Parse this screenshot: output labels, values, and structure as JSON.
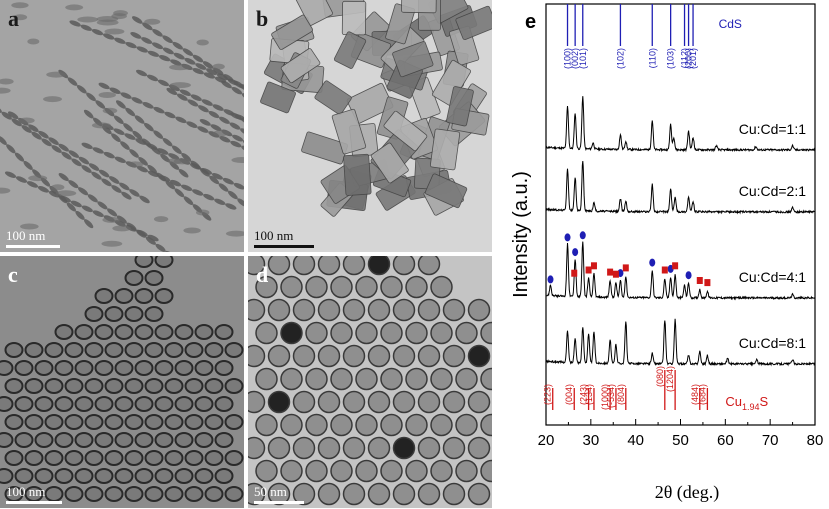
{
  "panels": [
    {
      "id": "a",
      "label": "a",
      "scale": "100 nm",
      "bg": "#9c9c9c"
    },
    {
      "id": "b",
      "label": "b",
      "scale": "100 nm",
      "bg": "#d8d8d8"
    },
    {
      "id": "c",
      "label": "c",
      "scale": "100 nm",
      "bg": "#8e8e8e"
    },
    {
      "id": "d",
      "label": "d",
      "scale": "50 nm",
      "bg": "#b0b0b0"
    }
  ],
  "chart_data": {
    "panel_label": "e",
    "type": "line",
    "xlabel": "2θ (deg.)",
    "ylabel": "Intensity (a.u.)",
    "xlim": [
      20,
      80
    ],
    "xticks": [
      20,
      30,
      40,
      50,
      60,
      70,
      80
    ],
    "colors": {
      "cds": "#1f1fb4",
      "cu": "#d01818",
      "trace": "#000000"
    },
    "cds_reference": {
      "name": "CdS",
      "peaks": [
        {
          "x": 24.8,
          "label": "(100)"
        },
        {
          "x": 26.5,
          "label": "(002)"
        },
        {
          "x": 28.2,
          "label": "(101)"
        },
        {
          "x": 36.6,
          "label": "(102)"
        },
        {
          "x": 43.7,
          "label": "(110)"
        },
        {
          "x": 47.8,
          "label": "(103)"
        },
        {
          "x": 50.9,
          "label": "(112)"
        },
        {
          "x": 51.8,
          "label": "(200)"
        },
        {
          "x": 52.8,
          "label": "(201)"
        }
      ]
    },
    "cu_reference": {
      "name": "Cu",
      "subscript": "1.94",
      "suffix": "S",
      "peaks": [
        {
          "x": 21.5,
          "label": "(223)"
        },
        {
          "x": 26.3,
          "label": "(004)"
        },
        {
          "x": 29.5,
          "label": "(243)"
        },
        {
          "x": 30.7,
          "label": "(134)"
        },
        {
          "x": 34.3,
          "label": "(1000)"
        },
        {
          "x": 35.6,
          "label": "(-534)"
        },
        {
          "x": 37.8,
          "label": "(804)"
        },
        {
          "x": 46.5,
          "label": "(080)"
        },
        {
          "x": 48.8,
          "label": "(1204)"
        },
        {
          "x": 54.3,
          "label": "(484)"
        },
        {
          "x": 56.0,
          "label": "(684)"
        }
      ]
    },
    "series": [
      {
        "name": "Cu:Cd=1:1",
        "peaks": [
          [
            24.8,
            1.0
          ],
          [
            26.5,
            0.85
          ],
          [
            28.2,
            1.25
          ],
          [
            30.5,
            0.15
          ],
          [
            36.6,
            0.35
          ],
          [
            37.8,
            0.2
          ],
          [
            43.7,
            0.7
          ],
          [
            47.8,
            0.6
          ],
          [
            48.5,
            0.3
          ],
          [
            51.8,
            0.45
          ],
          [
            52.8,
            0.3
          ],
          [
            58.0,
            0.1
          ],
          [
            66.8,
            0.08
          ],
          [
            75.0,
            0.1
          ]
        ]
      },
      {
        "name": "Cu:Cd=2:1",
        "peaks": [
          [
            24.8,
            1.0
          ],
          [
            26.5,
            0.8
          ],
          [
            28.2,
            1.2
          ],
          [
            30.7,
            0.2
          ],
          [
            36.6,
            0.3
          ],
          [
            37.8,
            0.25
          ],
          [
            43.7,
            0.65
          ],
          [
            47.8,
            0.55
          ],
          [
            48.8,
            0.35
          ],
          [
            51.8,
            0.35
          ],
          [
            52.8,
            0.25
          ],
          [
            75.0,
            0.1
          ]
        ]
      },
      {
        "name": "Cu:Cd=4:1",
        "peaks": [
          [
            21.0,
            0.25
          ],
          [
            24.8,
            1.25
          ],
          [
            26.5,
            0.9
          ],
          [
            28.2,
            1.3
          ],
          [
            29.5,
            0.45
          ],
          [
            30.7,
            0.55
          ],
          [
            34.3,
            0.4
          ],
          [
            35.6,
            0.35
          ],
          [
            36.6,
            0.4
          ],
          [
            37.8,
            0.5
          ],
          [
            43.7,
            0.65
          ],
          [
            46.5,
            0.45
          ],
          [
            47.8,
            0.5
          ],
          [
            48.8,
            0.55
          ],
          [
            50.9,
            0.3
          ],
          [
            51.8,
            0.35
          ],
          [
            54.3,
            0.2
          ],
          [
            56.0,
            0.15
          ],
          [
            75.0,
            0.08
          ]
        ]
      },
      {
        "name": "Cu:Cd=8:1",
        "peaks": [
          [
            24.8,
            0.75
          ],
          [
            26.5,
            0.6
          ],
          [
            28.2,
            0.85
          ],
          [
            29.5,
            0.7
          ],
          [
            30.7,
            0.75
          ],
          [
            34.3,
            0.55
          ],
          [
            35.6,
            0.45
          ],
          [
            37.8,
            1.0
          ],
          [
            43.7,
            0.25
          ],
          [
            46.5,
            1.05
          ],
          [
            48.8,
            1.05
          ],
          [
            51.8,
            0.2
          ],
          [
            54.3,
            0.3
          ],
          [
            56.0,
            0.2
          ],
          [
            60.5,
            0.12
          ],
          [
            67.0,
            0.1
          ],
          [
            75.0,
            0.1
          ]
        ]
      }
    ],
    "markers": {
      "series": "Cu:Cd=4:1",
      "blue_circles": [
        21.0,
        24.8,
        26.5,
        28.2,
        36.6,
        43.7,
        47.8,
        51.8
      ],
      "red_squares": [
        26.3,
        29.5,
        30.7,
        34.3,
        35.6,
        37.8,
        46.5,
        48.8,
        54.3,
        56.0
      ]
    }
  }
}
